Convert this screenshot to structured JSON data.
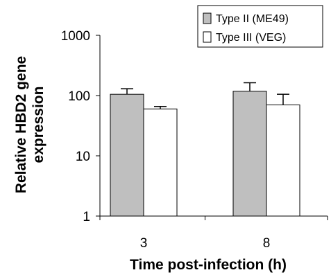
{
  "chart_data": {
    "type": "bar",
    "title": "",
    "xlabel": "Time post-infection (h)",
    "ylabel_lines": [
      "Relative HBD2 gene",
      "expression"
    ],
    "y_scale": "log",
    "ylim": [
      1,
      1000
    ],
    "y_ticks": [
      1,
      10,
      100,
      1000
    ],
    "categories": [
      "3",
      "8"
    ],
    "series": [
      {
        "name": "Type II (ME49)",
        "values": [
          105,
          118
        ],
        "errors": [
          25,
          45
        ],
        "color": "#bfbfbf"
      },
      {
        "name": "Type III (VEG)",
        "values": [
          60,
          70
        ],
        "errors": [
          6,
          35
        ],
        "color": "#ffffff"
      }
    ],
    "legend_position": "top-right",
    "grid": false
  }
}
